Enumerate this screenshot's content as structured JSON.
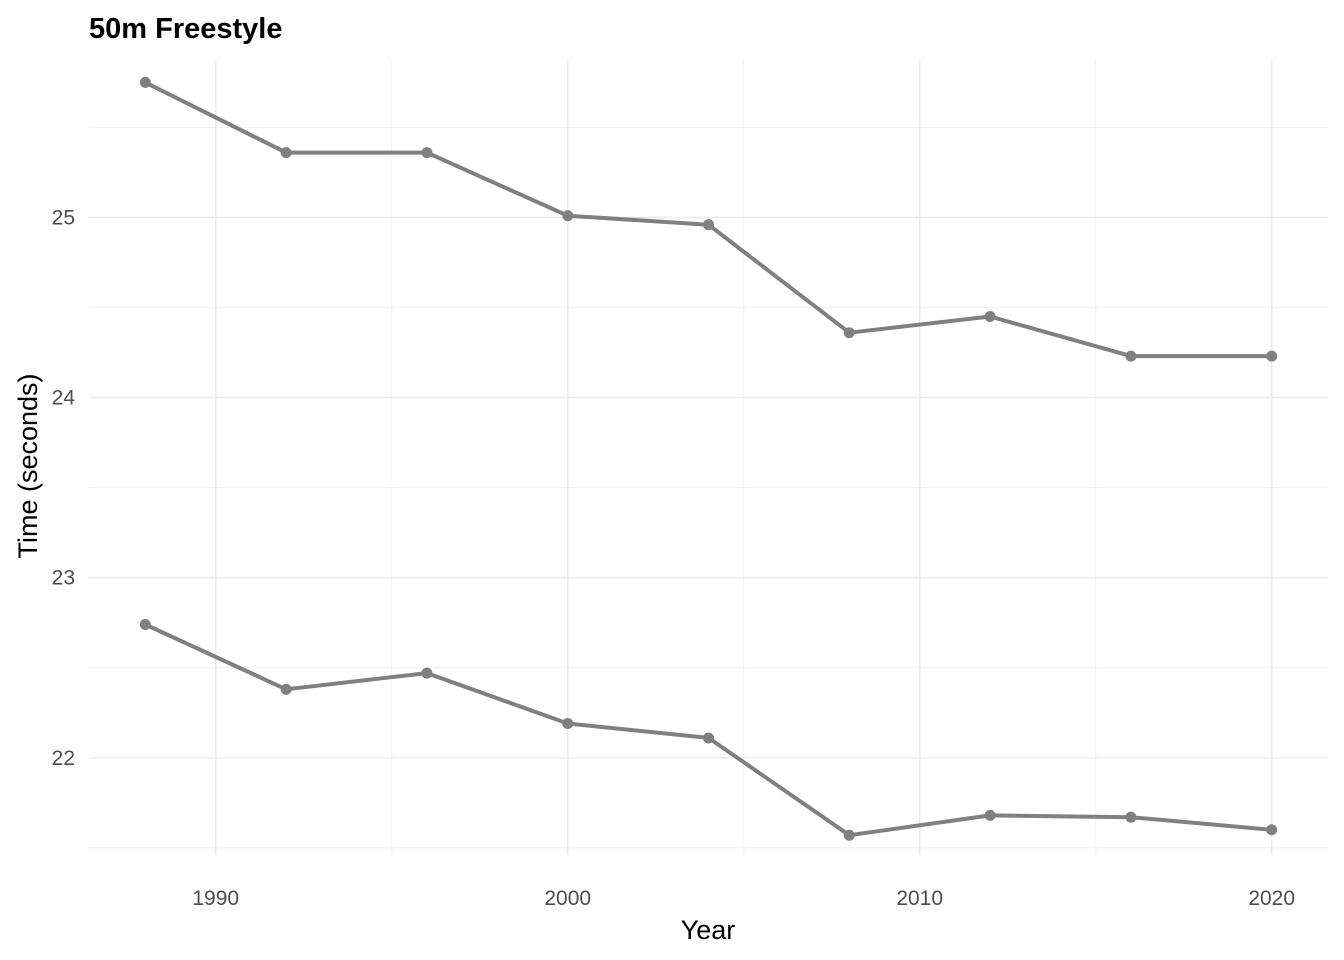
{
  "chart_data": {
    "type": "line",
    "title": "50m Freestyle",
    "xlabel": "Year",
    "ylabel": "Time (seconds)",
    "x": [
      1988,
      1992,
      1996,
      2000,
      2004,
      2008,
      2012,
      2016,
      2020
    ],
    "series": [
      {
        "values": [
          25.75,
          25.36,
          25.36,
          25.01,
          24.96,
          24.36,
          24.45,
          24.23,
          24.23
        ]
      },
      {
        "values": [
          22.74,
          22.38,
          22.47,
          22.19,
          22.11,
          21.57,
          21.68,
          21.67,
          21.6
        ]
      }
    ],
    "xlim": [
      1986.4,
      2021.6
    ],
    "ylim": [
      21.46,
      25.88
    ],
    "x_ticks": [
      1990,
      2000,
      2010,
      2020
    ],
    "x_tick_labels": [
      "1990",
      "2000",
      "2010",
      "2020"
    ],
    "y_ticks": [
      22,
      23,
      24,
      25
    ],
    "y_tick_labels": [
      "22",
      "23",
      "24",
      "25"
    ],
    "grid": true,
    "legend": "none",
    "colors": {
      "line": "#808080",
      "grid": "#ebebeb",
      "text": "#4d4d4d"
    }
  }
}
